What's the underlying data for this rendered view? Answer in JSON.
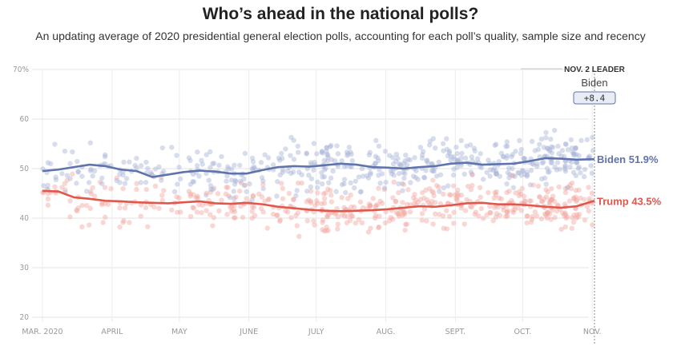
{
  "title": "Who’s ahead in the national polls?",
  "subtitle": "An updating average of 2020 presidential general election polls, accounting for each poll’s quality, sample size and recency",
  "chart_data": {
    "type": "line",
    "ylim": [
      20,
      70
    ],
    "y_ticks": [
      "70%",
      "60",
      "50",
      "40",
      "30",
      "20"
    ],
    "y_tick_values": [
      70,
      60,
      50,
      40,
      30,
      20
    ],
    "x_ticks": [
      "MAR. 2020",
      "APRIL",
      "MAY",
      "JUNE",
      "JULY",
      "AUG.",
      "SEPT.",
      "OCT.",
      "NOV."
    ],
    "x_tick_dates": [
      "2020-03-01",
      "2020-04-01",
      "2020-05-01",
      "2020-06-01",
      "2020-07-01",
      "2020-08-01",
      "2020-09-01",
      "2020-10-01",
      "2020-11-01"
    ],
    "grid": true,
    "colors": {
      "biden": "#5f73ad",
      "trump": "#e0574c",
      "biden_dots": "#a9b4d8",
      "trump_dots": "#f2a7a0"
    },
    "x": [
      "2020-03-01",
      "2020-03-08",
      "2020-03-15",
      "2020-03-22",
      "2020-03-29",
      "2020-04-05",
      "2020-04-12",
      "2020-04-19",
      "2020-04-26",
      "2020-05-03",
      "2020-05-10",
      "2020-05-17",
      "2020-05-24",
      "2020-05-31",
      "2020-06-07",
      "2020-06-14",
      "2020-06-21",
      "2020-06-28",
      "2020-07-05",
      "2020-07-12",
      "2020-07-19",
      "2020-07-26",
      "2020-08-02",
      "2020-08-09",
      "2020-08-16",
      "2020-08-23",
      "2020-08-30",
      "2020-09-06",
      "2020-09-13",
      "2020-09-20",
      "2020-09-27",
      "2020-10-04",
      "2020-10-11",
      "2020-10-18",
      "2020-10-25",
      "2020-11-02"
    ],
    "series": [
      {
        "name": "Biden",
        "values": [
          49.5,
          49.8,
          50.3,
          50.8,
          50.5,
          49.8,
          49.5,
          48.3,
          48.8,
          49.3,
          49.6,
          49.4,
          49.0,
          49.0,
          49.7,
          50.3,
          50.5,
          50.4,
          50.7,
          51.0,
          50.8,
          50.3,
          50.2,
          50.0,
          50.3,
          50.5,
          51.0,
          51.2,
          50.8,
          50.9,
          51.0,
          51.5,
          52.1,
          52.0,
          51.8,
          51.9
        ]
      },
      {
        "name": "Trump",
        "values": [
          45.5,
          45.4,
          44.2,
          43.9,
          43.5,
          43.4,
          43.2,
          43.1,
          43.0,
          43.2,
          43.4,
          43.0,
          42.9,
          43.1,
          42.8,
          42.3,
          42.0,
          41.7,
          41.5,
          41.4,
          41.5,
          41.6,
          41.8,
          42.1,
          42.4,
          42.3,
          42.6,
          43.0,
          43.1,
          42.8,
          42.8,
          42.6,
          42.3,
          42.1,
          42.4,
          43.5
        ]
      }
    ],
    "end_labels": [
      "Biden 51.9%",
      "Trump 43.5%"
    ],
    "leader_header": "NOV. 2 LEADER",
    "leader_name": "Biden",
    "leader_margin": "+8.4"
  }
}
